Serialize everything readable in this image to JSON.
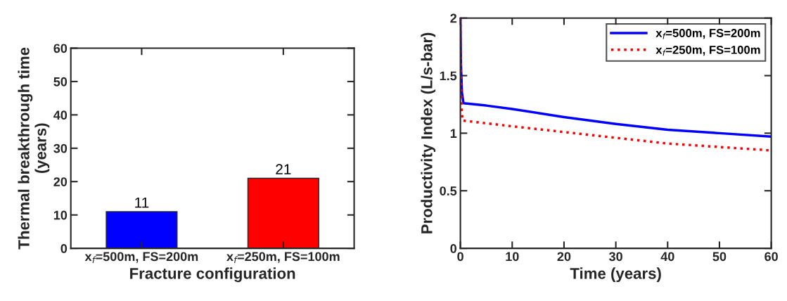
{
  "chart_data": [
    {
      "type": "bar",
      "categories": [
        "x$_{f}$=500m, FS=200m",
        "x$_{f}$=250m, FS=100m"
      ],
      "values": [
        11,
        21
      ],
      "colors": [
        "#0000ff",
        "#ff0000"
      ],
      "data_labels": true,
      "xlabel": "Fracture configuration",
      "ylabel": "Thermal breakthrough time\n(years)",
      "ylim": [
        0,
        60
      ],
      "yticks": [
        0,
        10,
        20,
        30,
        40,
        50,
        60
      ],
      "grid": false
    },
    {
      "type": "line",
      "xlabel": "Time (years)",
      "ylabel": "Productivity Index (L/s-bar)",
      "xlim": [
        0,
        60
      ],
      "xticks": [
        0,
        10,
        20,
        30,
        40,
        50,
        60
      ],
      "ylim": [
        0,
        2
      ],
      "yticks": [
        0,
        0.5,
        1,
        1.5,
        2
      ],
      "grid": false,
      "legend": "top right",
      "series": [
        {
          "name": "x$_{f}$=500m, FS=200m",
          "color": "#0000ff",
          "line_style": "solid",
          "x": [
            0,
            0.1,
            0.3,
            0.6,
            5,
            10,
            20,
            30,
            40,
            50,
            60
          ],
          "values": [
            2,
            1.6,
            1.35,
            1.26,
            1.24,
            1.21,
            1.14,
            1.08,
            1.03,
            1.0,
            0.97
          ]
        },
        {
          "name": "x$_{f}$=250m, FS=100m",
          "color": "#ff0000",
          "line_style": "dotted",
          "x": [
            0,
            0.1,
            0.2,
            0.4,
            10,
            20,
            30,
            40,
            50,
            60
          ],
          "values": [
            2,
            1.5,
            1.25,
            1.11,
            1.06,
            1.01,
            0.96,
            0.91,
            0.88,
            0.85
          ]
        }
      ]
    }
  ]
}
